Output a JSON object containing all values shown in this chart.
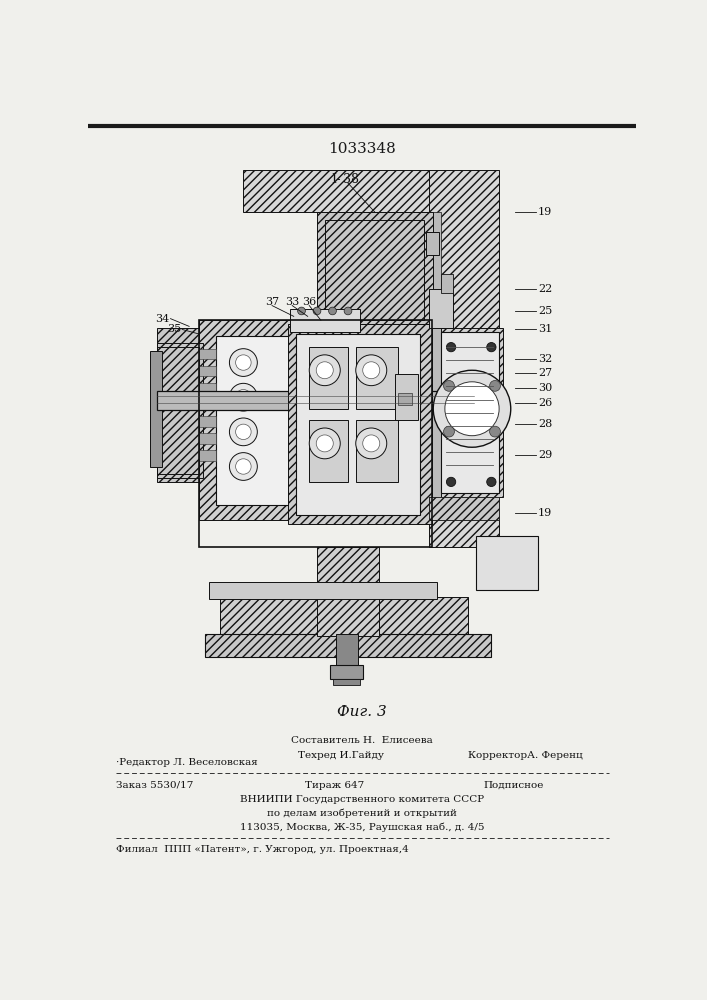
{
  "patent_number": "1033348",
  "figure_label": "Фиг. 3",
  "footer_line0_center": "Составитель Н.  Елисеева",
  "footer_line1_left": "·Редактор Л. Веселовская",
  "footer_line1_center": "Техред И.Гайду",
  "footer_line1_right": "КорректорА. Ференц",
  "footer_line2_left": "Заказ 5530/17",
  "footer_line2_center": "Тираж 647",
  "footer_line2_right": "Подписное",
  "footer_line3": "ВНИИПИ Государственного комитета СССР",
  "footer_line4": "по делам изобретений и открытий",
  "footer_line5": "113035, Москва, Ж-35, Раушская наб., д. 4/5",
  "footer_line6": "Филиал  ППП «Патент», г. Ужгород, ул. Проектная,4",
  "bg_color": "#f0f0ec"
}
